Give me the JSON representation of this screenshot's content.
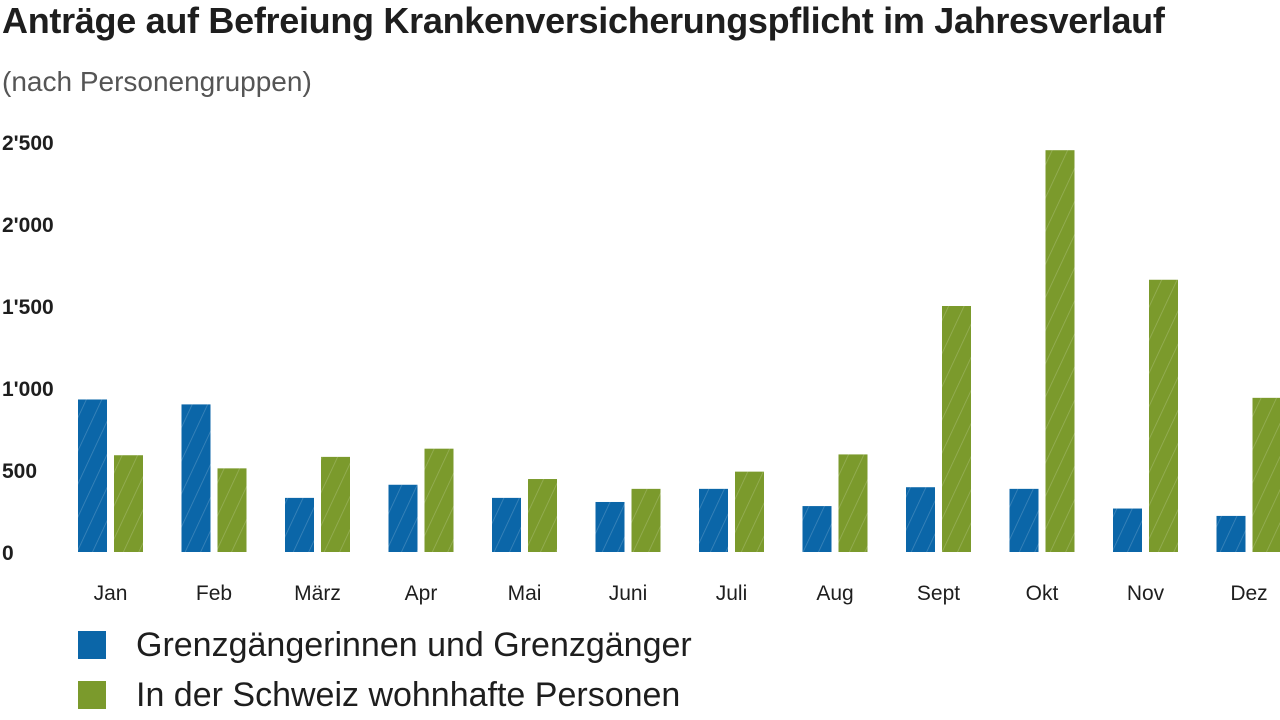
{
  "chart_data": {
    "type": "bar",
    "title": "Anträge auf Befreiung Krankenversicherungspflicht im Jahresverlauf",
    "subtitle": "(nach Personengruppen)",
    "categories": [
      "Jan",
      "Feb",
      "März",
      "Apr",
      "Mai",
      "Juni",
      "Juli",
      "Aug",
      "Sept",
      "Okt",
      "Nov",
      "Dez"
    ],
    "series": [
      {
        "name": "Grenzgängerinnen und Grenzgänger",
        "color": "#0b66a8",
        "values": [
          930,
          900,
          330,
          410,
          330,
          305,
          385,
          280,
          395,
          385,
          265,
          220
        ]
      },
      {
        "name": "In der Schweiz wohnhafte Personen",
        "color": "#7b9a2c",
        "values": [
          590,
          510,
          580,
          630,
          445,
          385,
          490,
          595,
          1500,
          2450,
          1660,
          940
        ]
      }
    ],
    "y_ticks": [
      "0",
      "500",
      "1'000",
      "1'500",
      "2'000",
      "2'500"
    ],
    "ylim": [
      0,
      2500
    ],
    "grid": false,
    "legend_position": "bottom-left",
    "bar_pattern": "diagonal-hatch"
  }
}
